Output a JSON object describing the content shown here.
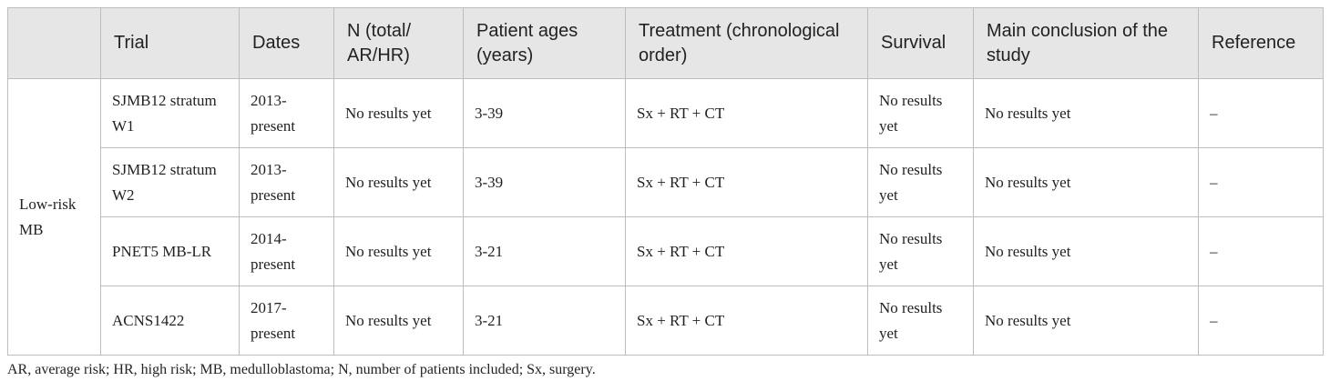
{
  "table": {
    "header": [
      "Trial",
      "Dates",
      "N (total/ AR/HR)",
      "Patient ages (years)",
      "Treatment (chronological order)",
      "Survival",
      "Main conclusion of the study",
      "Reference"
    ],
    "group": "Low-risk MB",
    "rows": [
      [
        "SJMB12 stratum W1",
        "2013-present",
        "No results yet",
        "3-39",
        "Sx + RT + CT",
        "No results yet",
        "No results yet",
        "–"
      ],
      [
        "SJMB12 stratum W2",
        "2013-present",
        "No results yet",
        "3-39",
        "Sx + RT + CT",
        "No results yet",
        "No results yet",
        "–"
      ],
      [
        "PNET5 MB-LR",
        "2014-present",
        "No results yet",
        "3-21",
        "Sx + RT + CT",
        "No results yet",
        "No results yet",
        "–"
      ],
      [
        "ACNS1422",
        "2017-present",
        "No results yet",
        "3-21",
        "Sx + RT + CT",
        "No results yet",
        "No results yet",
        "–"
      ]
    ]
  },
  "footnote": "AR, average risk; HR, high risk; MB, medulloblastoma; N, number of patients included; Sx, surgery."
}
